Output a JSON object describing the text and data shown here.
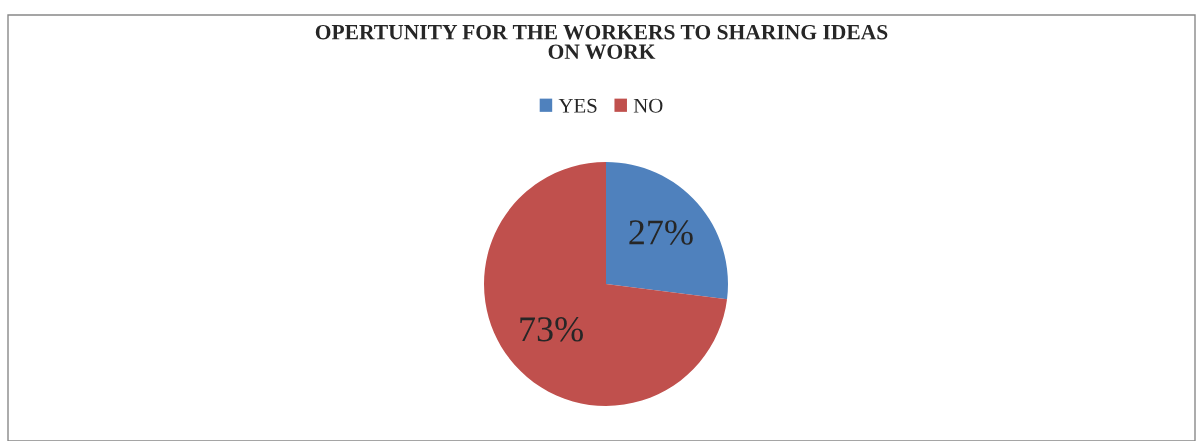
{
  "chart_data": {
    "type": "pie",
    "title": "OPERTUNITY FOR THE WORKERS TO SHARING IDEAS\nON WORK",
    "categories": [
      "YES",
      "NO"
    ],
    "values": [
      27,
      73
    ],
    "colors": [
      "#4f81bd",
      "#c0504d"
    ],
    "value_labels": [
      "27%",
      "73%"
    ],
    "legend": "top"
  }
}
